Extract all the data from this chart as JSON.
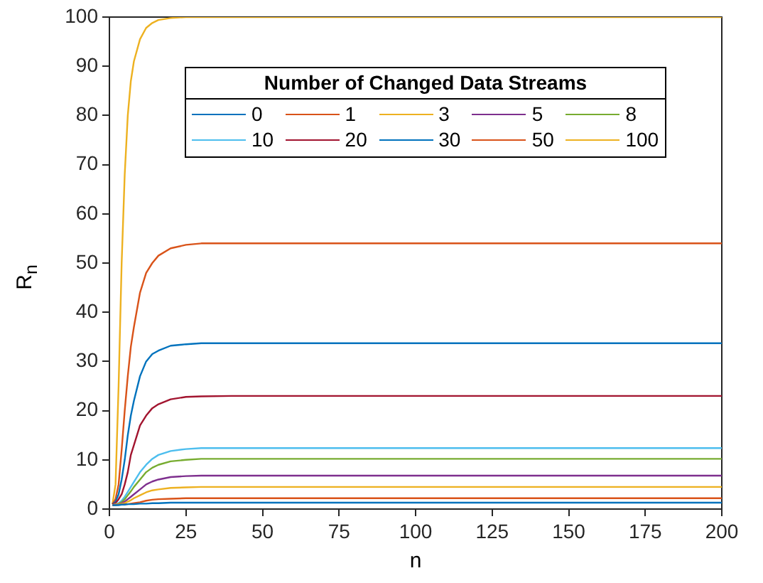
{
  "chart_data": {
    "type": "line",
    "xlabel": "n",
    "ylabel": "R$_{n}$",
    "legend_title": "Number of Changed Data Streams",
    "legend": "top",
    "grid": false,
    "marker": "none",
    "line_style": "solid",
    "x": [
      1,
      2,
      3,
      4,
      5,
      6,
      7,
      8,
      10,
      12,
      14,
      16,
      20,
      25,
      30,
      40,
      60,
      100,
      150,
      200
    ],
    "xlim": [
      0,
      200
    ],
    "xticks": [
      0,
      25,
      50,
      75,
      100,
      125,
      150,
      175,
      200
    ],
    "ylim": [
      0,
      100
    ],
    "yticks": [
      0,
      10,
      20,
      30,
      40,
      50,
      60,
      70,
      80,
      90,
      100
    ],
    "series": [
      {
        "name": "0",
        "color": "#0072bd",
        "values": [
          0.8,
          0.8,
          0.8,
          0.9,
          0.9,
          1,
          1,
          1,
          1.1,
          1.1,
          1.2,
          1.2,
          1.3,
          1.3,
          1.3,
          1.3,
          1.3,
          1.3,
          1.3,
          1.3
        ]
      },
      {
        "name": "1",
        "color": "#d95319",
        "values": [
          0.8,
          0.8,
          0.9,
          0.9,
          1,
          1,
          1.1,
          1.2,
          1.4,
          1.7,
          1.9,
          2,
          2.1,
          2.2,
          2.2,
          2.2,
          2.2,
          2.2,
          2.2,
          2.2
        ]
      },
      {
        "name": "3",
        "color": "#edb120",
        "values": [
          0.8,
          0.9,
          1,
          1.1,
          1.2,
          1.5,
          1.8,
          2.2,
          2.8,
          3.4,
          3.8,
          4,
          4.3,
          4.4,
          4.5,
          4.5,
          4.5,
          4.5,
          4.5,
          4.5
        ]
      },
      {
        "name": "5",
        "color": "#7e2f8e",
        "values": [
          0.8,
          0.9,
          1,
          1.2,
          1.5,
          2,
          2.5,
          3,
          4,
          5,
          5.6,
          6,
          6.5,
          6.7,
          6.8,
          6.8,
          6.8,
          6.8,
          6.8,
          6.8
        ]
      },
      {
        "name": "8",
        "color": "#77ac30",
        "values": [
          0.8,
          0.9,
          1.1,
          1.4,
          2,
          2.8,
          3.6,
          4.5,
          6,
          7.5,
          8.4,
          9,
          9.7,
          10,
          10.2,
          10.2,
          10.2,
          10.2,
          10.2,
          10.2
        ]
      },
      {
        "name": "10",
        "color": "#4dbeee",
        "values": [
          0.8,
          1,
          1.2,
          1.7,
          2.5,
          3.5,
          4.5,
          5.5,
          7.5,
          9,
          10.2,
          11,
          11.8,
          12.2,
          12.4,
          12.4,
          12.4,
          12.4,
          12.4,
          12.4
        ]
      },
      {
        "name": "20",
        "color": "#a2142f",
        "values": [
          1,
          1.2,
          2,
          3,
          5,
          7.5,
          11,
          13,
          17,
          19,
          20.5,
          21.3,
          22.3,
          22.8,
          22.9,
          23,
          23,
          23,
          23,
          23
        ]
      },
      {
        "name": "30",
        "color": "#0072bd",
        "values": [
          1,
          1.5,
          3,
          6,
          10,
          15,
          19,
          22,
          27,
          30,
          31.5,
          32.2,
          33.2,
          33.5,
          33.7,
          33.7,
          33.7,
          33.7,
          33.7,
          33.7
        ]
      },
      {
        "name": "50",
        "color": "#d95319",
        "values": [
          1,
          2,
          5,
          12,
          20,
          27,
          33,
          37,
          44,
          48,
          50,
          51.5,
          53,
          53.7,
          54,
          54,
          54,
          54,
          54,
          54
        ]
      },
      {
        "name": "100",
        "color": "#edb120",
        "values": [
          1,
          5,
          25,
          50,
          68,
          80,
          87,
          91,
          95.5,
          97.8,
          98.8,
          99.4,
          99.8,
          100,
          100,
          100,
          100,
          100,
          100,
          100
        ]
      }
    ]
  }
}
